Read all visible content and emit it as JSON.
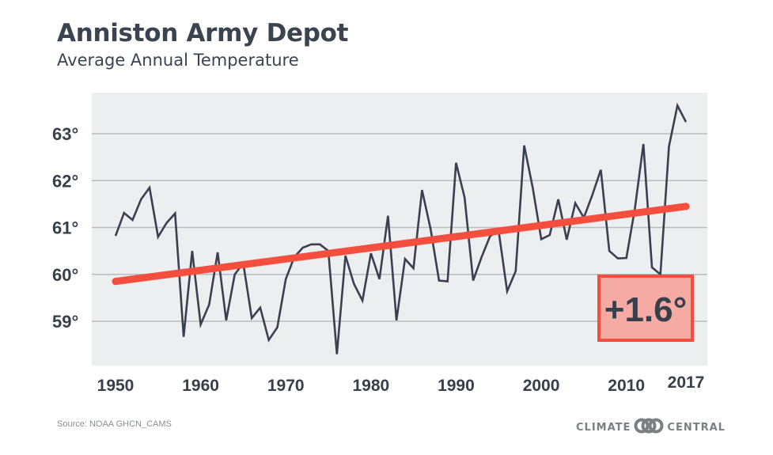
{
  "header": {
    "title": "Anniston Army Depot",
    "subtitle": "Average Annual Temperature"
  },
  "footer": {
    "source": "Source: NOAA GHCN_CAMS",
    "brand_left": "CLIMATE",
    "brand_right": "CENTRAL",
    "brand_icon": "interlocking-rings-icon"
  },
  "colors": {
    "plot_background": "#eceef0",
    "gridline": "#b9bcc0",
    "series_line": "#3b3f50",
    "trend_line": "#f44e3f",
    "badge_fill": "#f5aaa3",
    "badge_border": "#f44e3f",
    "text": "#37404a"
  },
  "chart_data": {
    "type": "line",
    "title": "Anniston Army Depot",
    "subtitle": "Average Annual Temperature",
    "xlabel": "",
    "ylabel": "",
    "xlim": [
      1947.2,
      2019.5
    ],
    "ylim": [
      58.0,
      63.85
    ],
    "grid": true,
    "x_ticks": [
      1950,
      1960,
      1970,
      1980,
      1990,
      2000,
      2010,
      2017
    ],
    "x_tick_labels": [
      "1950",
      "1960",
      "1970",
      "1980",
      "1990",
      "2000",
      "2010",
      "2017"
    ],
    "y_ticks": [
      59,
      60,
      61,
      62,
      63
    ],
    "y_tick_labels": [
      "59°",
      "60°",
      "61°",
      "62°",
      "63°"
    ],
    "x": [
      1950,
      1951,
      1952,
      1953,
      1954,
      1955,
      1956,
      1957,
      1958,
      1959,
      1960,
      1961,
      1962,
      1963,
      1964,
      1965,
      1966,
      1967,
      1968,
      1969,
      1970,
      1971,
      1972,
      1973,
      1974,
      1975,
      1976,
      1977,
      1978,
      1979,
      1980,
      1981,
      1982,
      1983,
      1984,
      1985,
      1986,
      1987,
      1988,
      1989,
      1990,
      1991,
      1992,
      1993,
      1994,
      1995,
      1996,
      1997,
      1998,
      1999,
      2000,
      2001,
      2002,
      2003,
      2004,
      2005,
      2006,
      2007,
      2008,
      2009,
      2010,
      2011,
      2012,
      2013,
      2014,
      2015,
      2016,
      2017
    ],
    "series": [
      {
        "name": "Average Annual Temperature",
        "values": [
          60.82,
          61.31,
          61.16,
          61.6,
          61.85,
          60.8,
          61.1,
          61.3,
          58.67,
          60.5,
          58.93,
          59.36,
          60.47,
          59.02,
          60.0,
          60.24,
          59.07,
          59.29,
          58.6,
          58.87,
          59.9,
          60.37,
          60.57,
          60.64,
          60.64,
          60.5,
          58.3,
          60.4,
          59.8,
          59.44,
          60.45,
          59.9,
          61.25,
          59.02,
          60.33,
          60.13,
          61.8,
          60.97,
          59.87,
          59.85,
          62.38,
          61.64,
          59.87,
          60.37,
          60.82,
          60.92,
          59.64,
          60.07,
          62.75,
          61.85,
          60.75,
          60.84,
          61.6,
          60.74,
          61.52,
          61.21,
          61.69,
          62.23,
          60.5,
          60.34,
          60.35,
          61.4,
          62.78,
          60.15,
          60.0,
          62.73,
          63.6,
          63.25
        ]
      },
      {
        "name": "Trend",
        "type": "line",
        "x": [
          1950,
          2017
        ],
        "values": [
          59.85,
          61.45
        ]
      }
    ],
    "annotations": [
      {
        "text": "+1.6°",
        "position": "bottom-right"
      }
    ]
  }
}
